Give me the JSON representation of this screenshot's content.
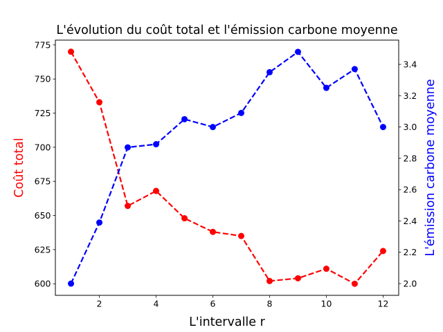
{
  "chart_data": {
    "type": "line",
    "title": "L'évolution du coût total et l'émission carbone moyenne",
    "xlabel": "L'intervalle r",
    "ylabel_left": "Coût total",
    "ylabel_right": "L'émission carbone moyenne",
    "x": [
      1,
      2,
      3,
      4,
      5,
      6,
      7,
      8,
      9,
      10,
      11,
      12
    ],
    "xlim": [
      0.45,
      12.55
    ],
    "xticks": [
      2,
      4,
      6,
      8,
      10,
      12
    ],
    "grid": false,
    "series": [
      {
        "axis": "left",
        "color": "#ff0000",
        "line_style": "dashed",
        "marker": "circle",
        "values": [
          770,
          733,
          657,
          668,
          648,
          638,
          635,
          602,
          604,
          611,
          600,
          624
        ]
      },
      {
        "axis": "right",
        "color": "#0000ff",
        "line_style": "dashed",
        "marker": "circle",
        "values": [
          2.0,
          2.39,
          2.87,
          2.89,
          3.05,
          3.0,
          3.09,
          3.35,
          3.48,
          3.25,
          3.37,
          3.0
        ]
      }
    ],
    "left_axis": {
      "ylim": [
        591.5,
        778.5
      ],
      "ticks": [
        600,
        625,
        650,
        675,
        700,
        725,
        750,
        775
      ],
      "color": "#ff0000"
    },
    "right_axis": {
      "ylim": [
        1.925,
        3.555
      ],
      "ticks": [
        2.0,
        2.2,
        2.4,
        2.6,
        2.8,
        3.0,
        3.2,
        3.4
      ],
      "tick_decimals": 1,
      "color": "#0000ff"
    }
  }
}
